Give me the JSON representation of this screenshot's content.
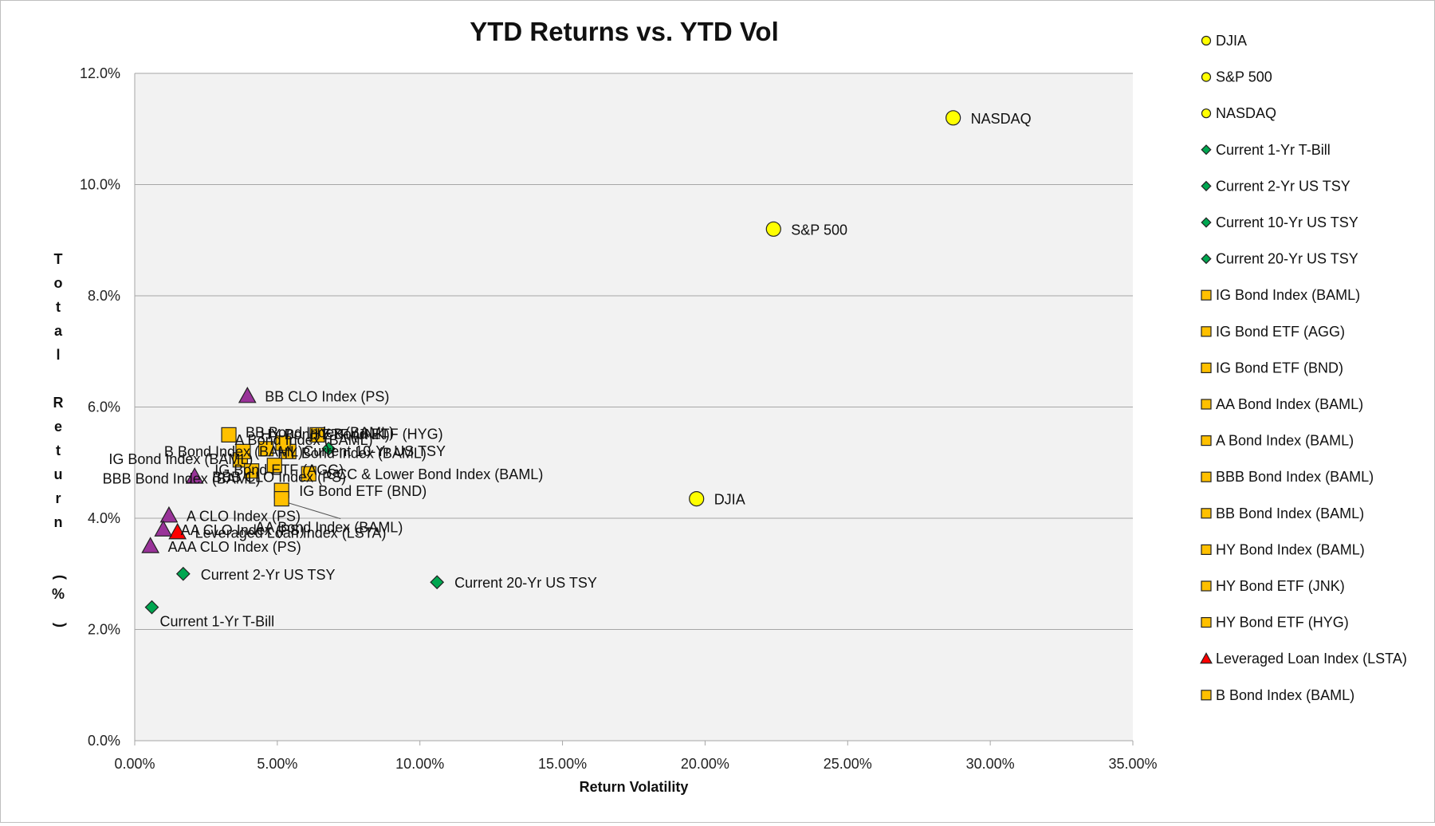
{
  "chart_data": {
    "type": "scatter",
    "title": "YTD Returns vs. YTD Vol",
    "xlabel": "Return Volatility",
    "ylabel": "Total Return (%)",
    "xlim": [
      0,
      35
    ],
    "ylim": [
      0,
      12
    ],
    "x_ticks": [
      "0.00%",
      "5.00%",
      "10.00%",
      "15.00%",
      "20.00%",
      "25.00%",
      "30.00%",
      "35.00%"
    ],
    "y_ticks": [
      "0.0%",
      "2.0%",
      "4.0%",
      "6.0%",
      "8.0%",
      "10.0%",
      "12.0%"
    ],
    "grid": "horizontal",
    "legend_position": "right",
    "colors": {
      "equity": "#ffff00",
      "treasury": "#00a650",
      "bond": "#ffc000",
      "loan": "#ff0000",
      "clo": "#993399"
    },
    "series": [
      {
        "name": "DJIA",
        "marker": "circle",
        "color": "#ffff00",
        "x": 19.7,
        "y": 4.35,
        "label": "DJIA"
      },
      {
        "name": "S&P 500",
        "marker": "circle",
        "color": "#ffff00",
        "x": 22.4,
        "y": 9.2,
        "label": "S&P 500"
      },
      {
        "name": "NASDAQ",
        "marker": "circle",
        "color": "#ffff00",
        "x": 28.7,
        "y": 11.2,
        "label": "NASDAQ"
      },
      {
        "name": "Current 1-Yr T-Bill",
        "marker": "diamond",
        "color": "#00a650",
        "x": 0.6,
        "y": 2.4,
        "label": "Current 1-Yr T-Bill"
      },
      {
        "name": "Current 2-Yr US TSY",
        "marker": "diamond",
        "color": "#00a650",
        "x": 1.7,
        "y": 3.0,
        "label": "Current 2-Yr US TSY"
      },
      {
        "name": "Current 10-Yr US TSY",
        "marker": "diamond",
        "color": "#00a650",
        "x": 6.8,
        "y": 5.25,
        "label": "Current 10-Yr US TSY"
      },
      {
        "name": "Current 20-Yr US TSY",
        "marker": "diamond",
        "color": "#00a650",
        "x": 10.6,
        "y": 2.85,
        "label": "Current 20-Yr US TSY"
      },
      {
        "name": "IG Bond Index (BAML)",
        "marker": "square",
        "color": "#ffc000",
        "x": 3.7,
        "y": 5.05,
        "label": "IG Bond Index (BAML)"
      },
      {
        "name": "IG Bond ETF (AGG)",
        "marker": "square",
        "color": "#ffc000",
        "x": 4.9,
        "y": 4.95,
        "label": "IG Bond ETF (AGG)"
      },
      {
        "name": "IG Bond ETF (BND)",
        "marker": "square",
        "color": "#ffc000",
        "x": 5.15,
        "y": 4.5,
        "label": "IG Bond ETF (BND)"
      },
      {
        "name": "AA Bond Index (BAML)",
        "marker": "square",
        "color": "#ffc000",
        "x": 5.15,
        "y": 4.35,
        "label": "AA Bond Index (BAML)"
      },
      {
        "name": "A Bond Index (BAML)",
        "marker": "square",
        "color": "#ffc000",
        "x": 4.6,
        "y": 5.25,
        "label": "A Bond Index (BAML)"
      },
      {
        "name": "BBB Bond Index (BAML)",
        "marker": "square",
        "color": "#ffc000",
        "x": 4.1,
        "y": 4.85,
        "label": "BBB Bond Index (BAML)"
      },
      {
        "name": "BB Bond Index (BAML)",
        "marker": "square",
        "color": "#ffc000",
        "x": 3.3,
        "y": 5.5,
        "label": "BB Bond Index (BAML)"
      },
      {
        "name": "HY Bond Index (BAML)",
        "marker": "square",
        "color": "#ffc000",
        "x": 5.4,
        "y": 5.2,
        "label": "HY Bond Index (BAML)"
      },
      {
        "name": "HY Bond ETF (JNK)",
        "marker": "square",
        "color": "#ffc000",
        "x": 5.2,
        "y": 5.35,
        "label": "HY Bond ETF (JNK)"
      },
      {
        "name": "HY Bond ETF (HYG)",
        "marker": "square",
        "color": "#ffc000",
        "x": 6.4,
        "y": 5.5,
        "label": "HY Bond ETF (HYG)"
      },
      {
        "name": "Leveraged Loan Index (LSTA)",
        "marker": "triangle",
        "color": "#ff0000",
        "x": 1.5,
        "y": 3.75,
        "label": "Leveraged Loan Index (LSTA)"
      },
      {
        "name": "B Bond Index (BAML)",
        "marker": "square",
        "color": "#ffc000",
        "x": 3.8,
        "y": 5.2,
        "label": "B Bond Index (BAML)"
      }
    ],
    "unlisted_points": [
      {
        "name": "BB CLO Index (PS)",
        "marker": "triangle",
        "color": "#993399",
        "x": 3.95,
        "y": 6.2,
        "label": "BB CLO Index (PS)"
      },
      {
        "name": "BBB CLO Index (PS)",
        "marker": "triangle",
        "color": "#993399",
        "x": 2.1,
        "y": 4.75,
        "label": "BBB CLO Index (PS)"
      },
      {
        "name": "A CLO Index (PS)",
        "marker": "triangle",
        "color": "#993399",
        "x": 1.2,
        "y": 4.05,
        "label": "A CLO Index (PS)"
      },
      {
        "name": "AA CLO Index (PS)",
        "marker": "triangle",
        "color": "#993399",
        "x": 1.0,
        "y": 3.8,
        "label": "AA CLO Index (PS)"
      },
      {
        "name": "AAA CLO Index (PS)",
        "marker": "triangle",
        "color": "#993399",
        "x": 0.55,
        "y": 3.5,
        "label": "AAA CLO Index (PS)"
      },
      {
        "name": "CCC & Lower Bond Index (BAML)",
        "marker": "square",
        "color": "#ffc000",
        "x": 6.1,
        "y": 4.8,
        "label": "CCC & Lower Bond Index (BAML)"
      }
    ]
  }
}
